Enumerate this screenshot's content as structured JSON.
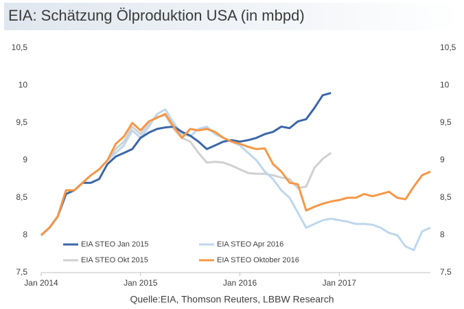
{
  "chart_data": {
    "type": "line",
    "title": "EIA: Schätzung Ölproduktion USA (in mbpd)",
    "source": "Quelle:EIA, Thomson Reuters, LBBW Research",
    "categories": [
      "Jan 2014",
      null,
      null,
      null,
      null,
      null,
      null,
      null,
      null,
      null,
      null,
      null,
      "Jan 2015",
      null,
      null,
      null,
      null,
      null,
      null,
      null,
      null,
      null,
      null,
      null,
      "Jan 2016",
      null,
      null,
      null,
      null,
      null,
      null,
      null,
      null,
      null,
      null,
      null,
      "Jan 2017",
      null,
      null,
      null,
      null,
      null,
      null,
      null,
      null,
      null,
      null,
      null
    ],
    "ylim": [
      7.5,
      10.5
    ],
    "yticks": [
      {
        "value": 7.5,
        "label": "7,5"
      },
      8,
      {
        "value": 8.5,
        "label": "8,5"
      },
      9,
      {
        "value": 9.5,
        "label": "9,5"
      },
      10,
      {
        "value": 10.5,
        "label": "10,5"
      }
    ],
    "legend": "bottom-left",
    "series": [
      {
        "name": "EIA STEO Jan 2015",
        "color": "#3a66a8",
        "values": [
          8.0,
          8.1,
          8.25,
          8.55,
          8.6,
          8.7,
          8.7,
          8.75,
          8.95,
          9.05,
          9.1,
          9.15,
          9.3,
          9.37,
          9.42,
          9.44,
          9.45,
          9.38,
          9.33,
          9.25,
          9.15,
          9.2,
          9.25,
          9.27,
          9.25,
          9.27,
          9.3,
          9.35,
          9.38,
          9.45,
          9.43,
          9.52,
          9.55,
          9.7,
          9.87,
          9.9,
          null,
          null,
          null,
          null,
          null,
          null,
          null,
          null,
          null,
          null,
          null,
          null
        ]
      },
      {
        "name": "EIA STEO Apr 2016",
        "color": "#bdd7ee",
        "values": [
          8.0,
          8.1,
          8.25,
          8.6,
          8.6,
          8.7,
          8.8,
          8.88,
          9.0,
          9.1,
          9.2,
          9.4,
          9.3,
          9.45,
          9.62,
          9.68,
          9.5,
          9.35,
          9.32,
          9.42,
          9.45,
          9.35,
          9.3,
          9.25,
          9.2,
          9.1,
          9.0,
          8.85,
          8.75,
          8.6,
          8.5,
          8.3,
          8.1,
          8.15,
          8.2,
          8.22,
          8.2,
          8.18,
          8.15,
          8.15,
          8.14,
          8.1,
          8.03,
          8.0,
          7.85,
          7.8,
          8.05,
          8.1
        ]
      },
      {
        "name": "EIA STEO Okt 2015",
        "color": "#d0d0d0",
        "values": [
          8.0,
          8.1,
          8.25,
          8.6,
          8.6,
          8.7,
          8.8,
          8.88,
          9.0,
          9.15,
          9.25,
          9.45,
          9.35,
          9.5,
          9.58,
          9.6,
          9.42,
          9.3,
          9.25,
          9.1,
          8.97,
          8.98,
          8.97,
          8.93,
          8.88,
          8.83,
          8.82,
          8.82,
          8.8,
          8.77,
          8.75,
          8.63,
          8.65,
          8.9,
          9.02,
          9.1,
          null,
          null,
          null,
          null,
          null,
          null,
          null,
          null,
          null,
          null,
          null,
          null
        ]
      },
      {
        "name": "EIA STEO Oktober 2016",
        "color": "#f79646",
        "values": [
          8.0,
          8.1,
          8.25,
          8.6,
          8.6,
          8.7,
          8.8,
          8.88,
          9.0,
          9.22,
          9.32,
          9.5,
          9.4,
          9.52,
          9.57,
          9.62,
          9.45,
          9.3,
          9.42,
          9.4,
          9.42,
          9.38,
          9.3,
          9.25,
          9.22,
          9.18,
          9.15,
          9.16,
          8.95,
          8.85,
          8.7,
          8.68,
          8.33,
          8.38,
          8.42,
          8.45,
          8.47,
          8.5,
          8.5,
          8.55,
          8.52,
          8.55,
          8.58,
          8.5,
          8.48,
          8.65,
          8.8,
          8.85
        ]
      }
    ]
  }
}
